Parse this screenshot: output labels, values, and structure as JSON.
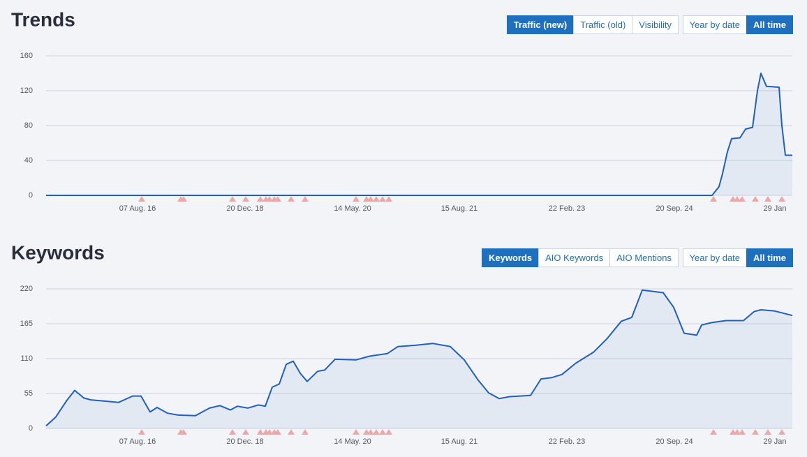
{
  "chart_data": [
    {
      "type": "line",
      "title": "Trends",
      "tabs": [
        "Traffic (new)",
        "Traffic (old)",
        "Visibility"
      ],
      "active_tab": 0,
      "range_tabs": [
        "Year by date",
        "All time"
      ],
      "active_range": 1,
      "x": [
        0,
        954,
        964,
        969,
        976,
        982,
        994,
        1002,
        1012,
        1019,
        1024,
        1032,
        1050,
        1054,
        1059,
        1069
      ],
      "values": [
        0,
        0,
        10,
        25,
        50,
        65,
        66,
        76,
        78,
        120,
        140,
        125,
        124,
        80,
        46,
        46
      ],
      "color": "#1f5fbf",
      "area": true,
      "grid": true,
      "xlim": [
        0,
        1069
      ],
      "xticks": [
        {
          "value": 131,
          "label": "07 Aug. 16"
        },
        {
          "value": 285,
          "label": "20 Dec. 18"
        },
        {
          "value": 439,
          "label": "14 May. 20"
        },
        {
          "value": 592,
          "label": "15 Aug. 21"
        },
        {
          "value": 746,
          "label": "22 Feb. 23"
        },
        {
          "value": 900,
          "label": "20 Sep. 24"
        },
        {
          "value": 1044,
          "label": "29 Jan"
        }
      ],
      "ylim": [
        0,
        160
      ],
      "yticks": [
        0,
        40,
        80,
        120,
        160
      ],
      "events": [
        137,
        193,
        197,
        267,
        286,
        307,
        315,
        320,
        327,
        332,
        351,
        371,
        444,
        459,
        465,
        473,
        482,
        491,
        956,
        984,
        990,
        997,
        1016,
        1034,
        1054
      ],
      "event_color": "#e9a9a9"
    },
    {
      "type": "line",
      "title": "Keywords",
      "tabs": [
        "Keywords",
        "AIO Keywords",
        "AIO Mentions"
      ],
      "active_tab": 0,
      "range_tabs": [
        "Year by date",
        "All time"
      ],
      "active_range": 1,
      "x": [
        0,
        14,
        29,
        41,
        54,
        64,
        84,
        104,
        124,
        136,
        149,
        159,
        174,
        189,
        214,
        234,
        249,
        264,
        274,
        289,
        304,
        314,
        324,
        334,
        344,
        354,
        364,
        374,
        389,
        399,
        414,
        444,
        464,
        489,
        504,
        529,
        554,
        579,
        599,
        619,
        634,
        649,
        664,
        694,
        709,
        724,
        739,
        759,
        784,
        804,
        824,
        839,
        854,
        869,
        884,
        899,
        914,
        932,
        939,
        954,
        974,
        999,
        1014,
        1024,
        1044,
        1069
      ],
      "values": [
        4,
        18,
        43,
        60,
        48,
        45,
        43,
        41,
        51,
        51,
        26,
        33,
        24,
        21,
        20,
        32,
        36,
        29,
        35,
        32,
        37,
        35,
        65,
        70,
        101,
        106,
        87,
        74,
        90,
        92,
        109,
        108,
        114,
        118,
        129,
        131,
        134,
        129,
        108,
        76,
        56,
        47,
        50,
        52,
        78,
        80,
        85,
        103,
        120,
        142,
        169,
        175,
        218,
        216,
        214,
        191,
        150,
        147,
        163,
        167,
        170,
        170,
        184,
        187,
        185,
        178
      ],
      "color": "#1f5fbf",
      "area": true,
      "grid": true,
      "xlim": [
        0,
        1069
      ],
      "xticks": [
        {
          "value": 131,
          "label": "07 Aug. 16"
        },
        {
          "value": 285,
          "label": "20 Dec. 18"
        },
        {
          "value": 439,
          "label": "14 May. 20"
        },
        {
          "value": 592,
          "label": "15 Aug. 21"
        },
        {
          "value": 746,
          "label": "22 Feb. 23"
        },
        {
          "value": 900,
          "label": "20 Sep. 24"
        },
        {
          "value": 1044,
          "label": "29 Jan"
        }
      ],
      "ylim": [
        0,
        220
      ],
      "yticks": [
        0,
        55,
        110,
        165,
        220
      ],
      "events": [
        137,
        193,
        197,
        267,
        286,
        307,
        315,
        320,
        327,
        332,
        351,
        371,
        444,
        459,
        465,
        473,
        482,
        491,
        956,
        984,
        990,
        997,
        1016,
        1034,
        1054
      ],
      "event_color": "#e9a9a9"
    }
  ]
}
